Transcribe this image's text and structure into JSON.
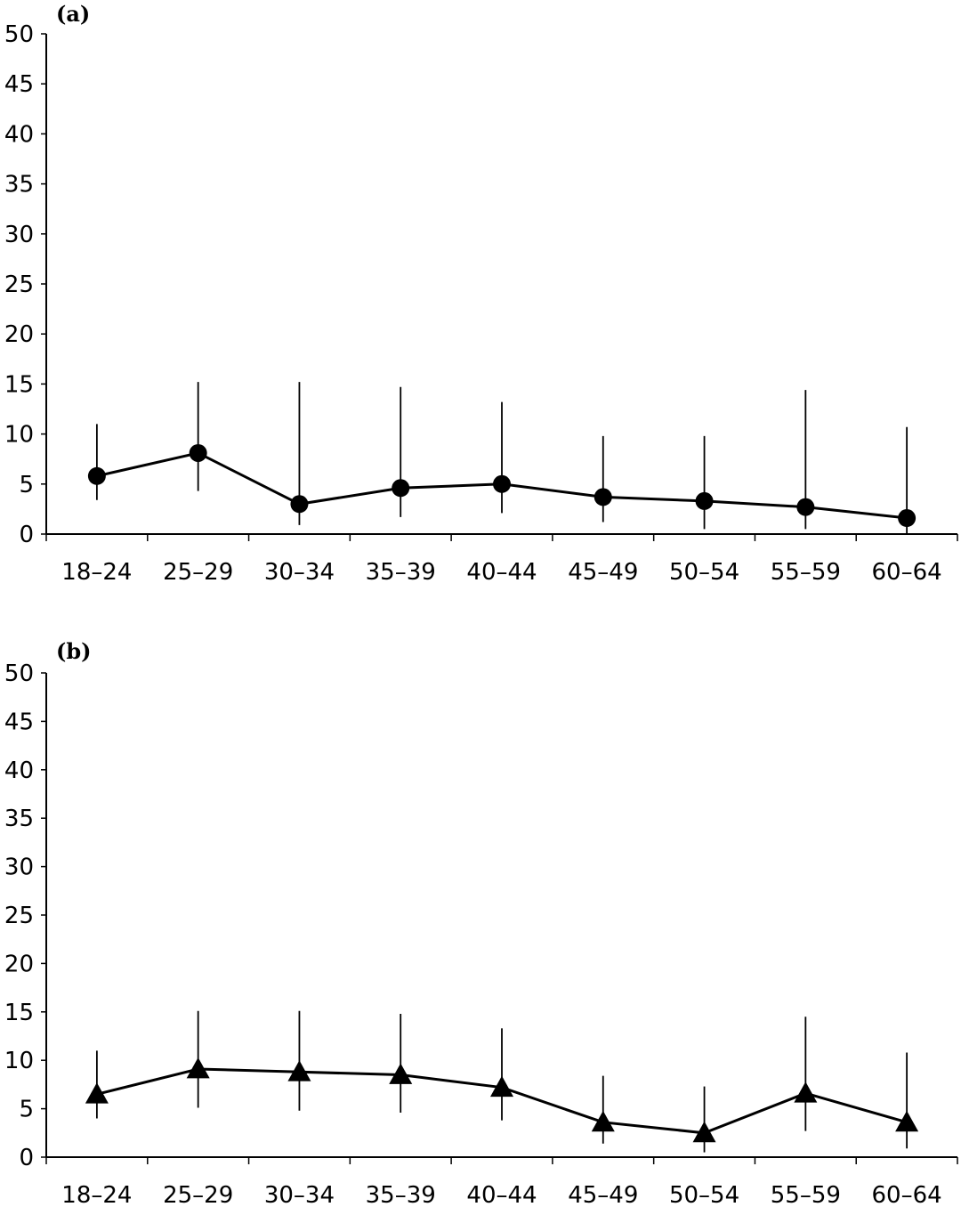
{
  "chart_data": [
    {
      "panel_label": "(a)",
      "type": "line",
      "marker": "circle",
      "categories": [
        "18–24",
        "25–29",
        "30–34",
        "35–39",
        "40–44",
        "45–49",
        "50–54",
        "55–59",
        "60–64"
      ],
      "values": [
        5.8,
        8.1,
        3.0,
        4.6,
        5.0,
        3.7,
        3.3,
        2.7,
        1.6
      ],
      "err_low": [
        3.4,
        4.3,
        0.9,
        1.7,
        2.1,
        1.2,
        0.5,
        0.5,
        0.0
      ],
      "err_high": [
        11.0,
        15.2,
        15.2,
        14.7,
        13.2,
        9.8,
        9.8,
        14.4,
        10.7
      ],
      "ylim": [
        0,
        50
      ],
      "yticks": [
        "0",
        "5",
        "10",
        "15",
        "20",
        "25",
        "30",
        "35",
        "40",
        "45",
        "50"
      ],
      "xlabel": "",
      "ylabel": "",
      "grid": false
    },
    {
      "panel_label": "(b)",
      "type": "line",
      "marker": "triangle",
      "categories": [
        "18–24",
        "25–29",
        "30–34",
        "35–39",
        "40–44",
        "45–49",
        "50–54",
        "55–59",
        "60–64"
      ],
      "values": [
        6.5,
        9.1,
        8.8,
        8.5,
        7.2,
        3.6,
        2.5,
        6.6,
        3.6
      ],
      "err_low": [
        4.0,
        5.1,
        4.8,
        4.6,
        3.8,
        1.4,
        0.5,
        2.7,
        0.9
      ],
      "err_high": [
        11.0,
        15.1,
        15.1,
        14.8,
        13.3,
        8.4,
        7.3,
        14.5,
        10.8
      ],
      "ylim": [
        0,
        50
      ],
      "yticks": [
        "0",
        "5",
        "10",
        "15",
        "20",
        "25",
        "30",
        "35",
        "40",
        "45",
        "50"
      ],
      "xlabel": "",
      "ylabel": "",
      "grid": false
    }
  ]
}
